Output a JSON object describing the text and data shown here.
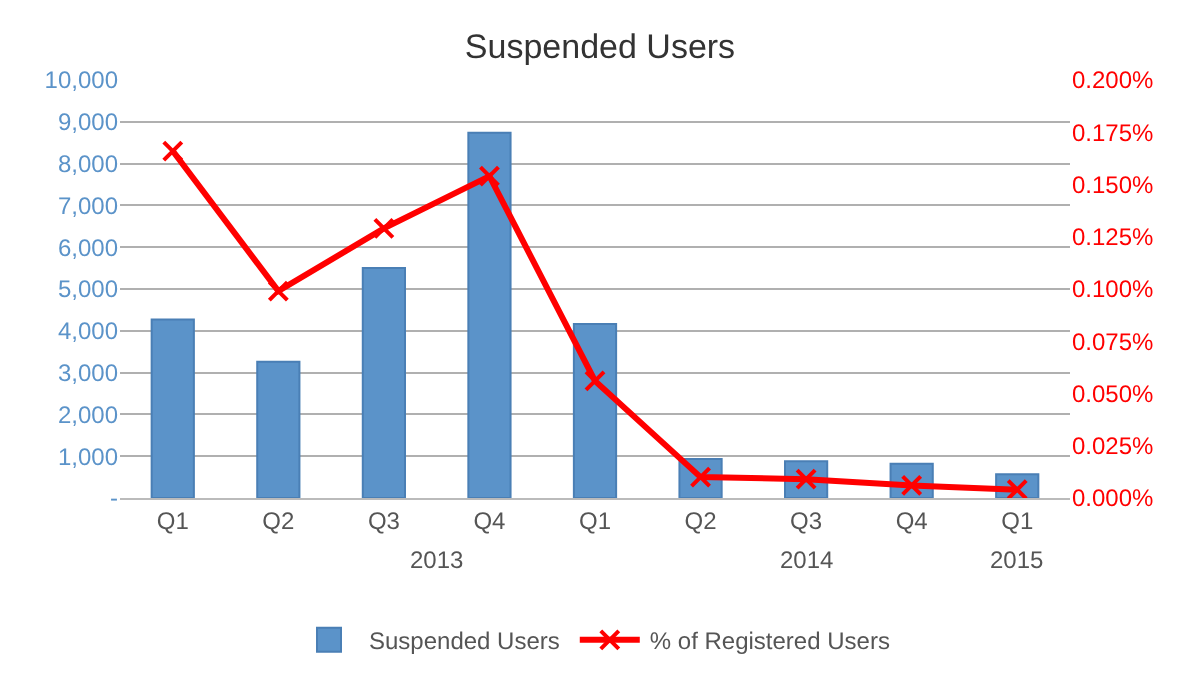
{
  "chart_data": {
    "type": "bar",
    "title": "Suspended Users",
    "categories": [
      "Q1",
      "Q2",
      "Q3",
      "Q4",
      "Q1",
      "Q2",
      "Q3",
      "Q4",
      "Q1"
    ],
    "series": [
      {
        "name": "Suspended Users",
        "color": "#5b93c9",
        "values": [
          4270,
          3260,
          5500,
          8740,
          4160,
          930,
          880,
          820,
          570
        ]
      },
      {
        "name": "% of Registered Users",
        "type": "line",
        "axis": "y2",
        "color": "#ff0000",
        "marker": "cross",
        "values": [
          0.166,
          0.099,
          0.129,
          0.154,
          0.056,
          0.01,
          0.009,
          0.006,
          0.004
        ]
      }
    ],
    "ylim": [
      0,
      10000
    ],
    "yticks": [
      {
        "value": 0,
        "label": "-"
      },
      {
        "value": 1000,
        "label": "1,000"
      },
      {
        "value": 2000,
        "label": "2,000"
      },
      {
        "value": 3000,
        "label": "3,000"
      },
      {
        "value": 4000,
        "label": "4,000"
      },
      {
        "value": 5000,
        "label": "5,000"
      },
      {
        "value": 6000,
        "label": "6,000"
      },
      {
        "value": 7000,
        "label": "7,000"
      },
      {
        "value": 8000,
        "label": "8,000"
      },
      {
        "value": 9000,
        "label": "9,000"
      },
      {
        "value": 10000,
        "label": "10,000"
      }
    ],
    "y2lim": [
      0,
      0.2
    ],
    "y2ticks": [
      {
        "value": 0,
        "label": "0.000%"
      },
      {
        "value": 0.025,
        "label": "0.025%"
      },
      {
        "value": 0.05,
        "label": "0.050%"
      },
      {
        "value": 0.075,
        "label": "0.075%"
      },
      {
        "value": 0.1,
        "label": "0.100%"
      },
      {
        "value": 0.125,
        "label": "0.125%"
      },
      {
        "value": 0.15,
        "label": "0.150%"
      },
      {
        "value": 0.175,
        "label": "0.175%"
      },
      {
        "value": 0.2,
        "label": "0.200%"
      }
    ],
    "annotations": [
      "2013",
      "2014",
      "2015"
    ],
    "grid": "y",
    "legend": "bottom"
  }
}
